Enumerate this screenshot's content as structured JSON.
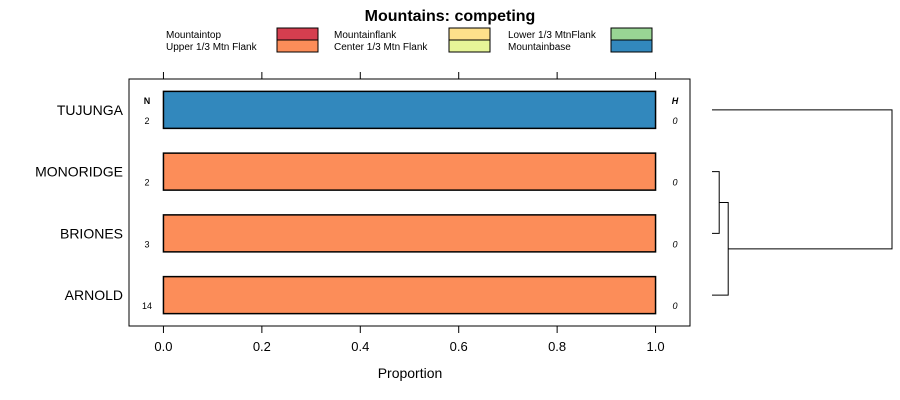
{
  "chart_data": {
    "type": "bar",
    "orientation": "horizontal",
    "stacked": true,
    "title": "Mountains: competing",
    "xlabel": "Proportion",
    "ylabel": "",
    "xlim": [
      -0.07,
      1.07
    ],
    "x_ticks": [
      0,
      0.2,
      0.4,
      0.6,
      0.8,
      1
    ],
    "x_tick_labels": [
      "0.0",
      "0.2",
      "0.4",
      "0.6",
      "0.8",
      "1.0"
    ],
    "categories": [
      "TUJUNGA",
      "MONORIDGE",
      "BRIONES",
      "ARNOLD"
    ],
    "n_header": "N",
    "h_header": "H",
    "n_values": [
      "2",
      "2",
      "3",
      "14"
    ],
    "h_values": [
      "0",
      "0",
      "0",
      "0"
    ],
    "legend": [
      {
        "label": "Mountaintop",
        "color": "#d53e4f"
      },
      {
        "label": "Upper 1/3 Mtn Flank",
        "color": "#fc8d59"
      },
      {
        "label": "Mountainflank",
        "color": "#fee08b"
      },
      {
        "label": "Center 1/3 Mtn Flank",
        "color": "#e6f598"
      },
      {
        "label": "Lower 1/3 MtnFlank",
        "color": "#99d594"
      },
      {
        "label": "Mountainbase",
        "color": "#3288bd"
      }
    ],
    "series": [
      {
        "name": "Mountaintop",
        "values": [
          0,
          0,
          0,
          0
        ]
      },
      {
        "name": "Upper 1/3 Mtn Flank",
        "values": [
          0,
          1,
          1,
          1
        ]
      },
      {
        "name": "Mountainflank",
        "values": [
          0,
          0,
          0,
          0
        ]
      },
      {
        "name": "Center 1/3 Mtn Flank",
        "values": [
          0,
          0,
          0,
          0
        ]
      },
      {
        "name": "Lower 1/3 MtnFlank",
        "values": [
          0,
          0,
          0,
          0
        ]
      },
      {
        "name": "Mountainbase",
        "values": [
          1,
          0,
          0,
          0
        ]
      }
    ],
    "dendrogram": {
      "merges": [
        {
          "left": "MONORIDGE",
          "right": "BRIONES",
          "height": 0.04
        },
        {
          "left": "cluster1",
          "right": "ARNOLD",
          "height": 0.09
        },
        {
          "left": "TUJUNGA",
          "right": "cluster2",
          "height": 1.0
        }
      ]
    }
  }
}
